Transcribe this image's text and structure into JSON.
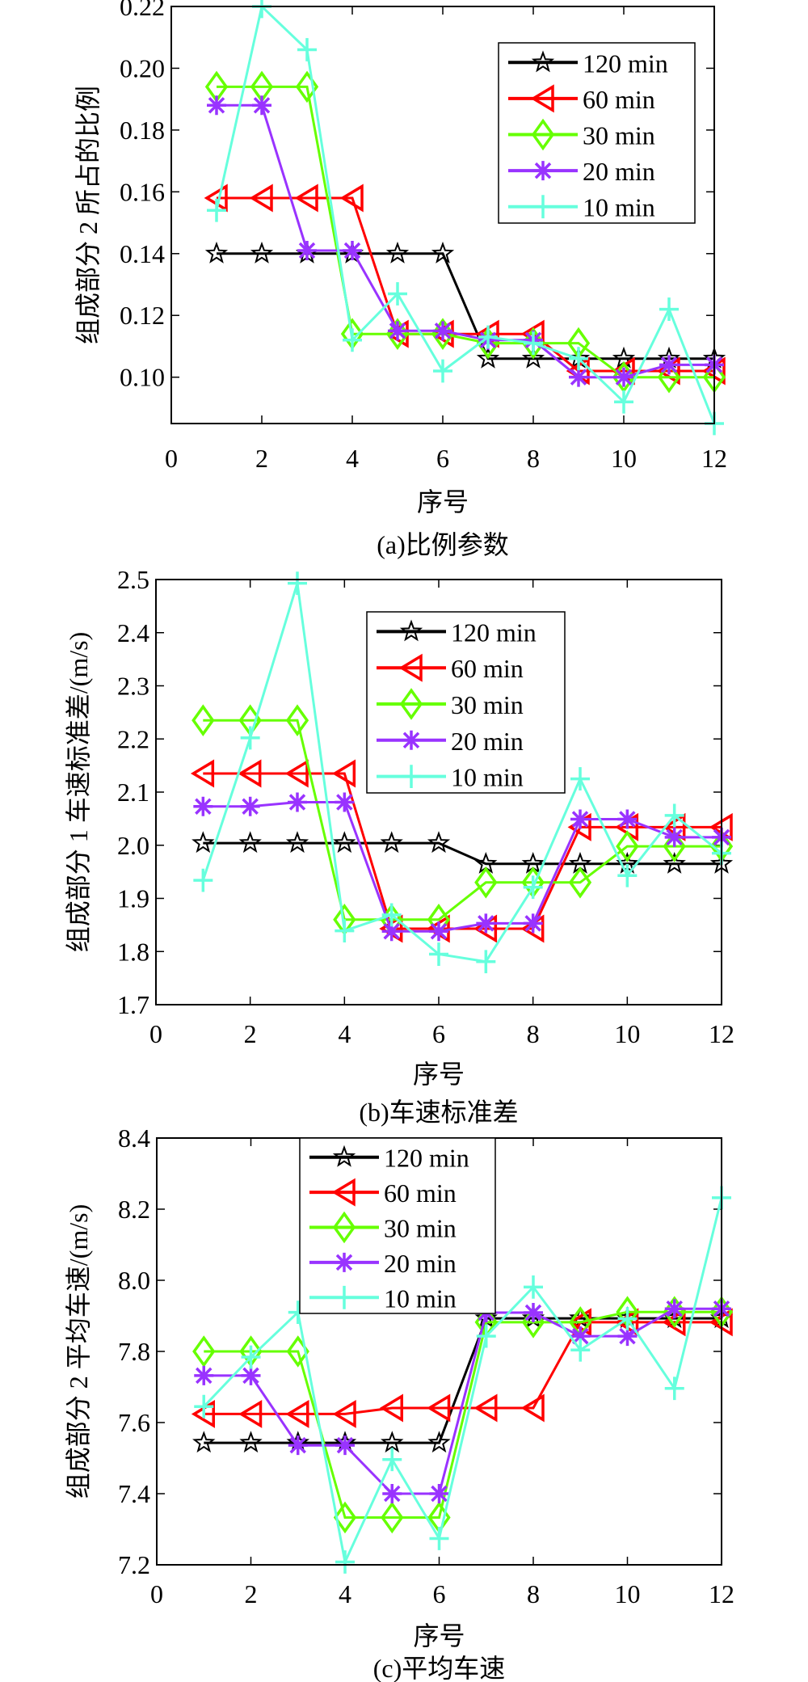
{
  "chart_data": [
    {
      "type": "line",
      "caption": "(a)比例参数",
      "xlabel": "序号",
      "ylabel": "组成部分 2 所占的比例",
      "x": [
        1,
        2,
        3,
        4,
        5,
        6,
        7,
        8,
        9,
        10,
        11,
        12
      ],
      "xlim": [
        0,
        12
      ],
      "ylim": [
        0.085,
        0.22
      ],
      "xticks": [
        "0",
        "2",
        "4",
        "6",
        "8",
        "10",
        "12"
      ],
      "yticks": [
        "0.10",
        "0.12",
        "0.14",
        "0.16",
        "0.18",
        "0.20",
        "0.22"
      ],
      "legend_position": "top-right",
      "grid": false,
      "series": [
        {
          "name": "120 min",
          "color": "#000000",
          "marker": "star",
          "values": [
            0.14,
            0.14,
            0.14,
            0.14,
            0.14,
            0.14,
            0.106,
            0.106,
            0.106,
            0.106,
            0.106,
            0.106
          ]
        },
        {
          "name": "60 min",
          "color": "#ff0000",
          "marker": "triangle-left",
          "values": [
            0.158,
            0.158,
            0.158,
            0.158,
            0.114,
            0.114,
            0.114,
            0.114,
            0.102,
            0.102,
            0.102,
            0.102
          ]
        },
        {
          "name": "30 min",
          "color": "#66ff00",
          "marker": "diamond",
          "values": [
            0.194,
            0.194,
            0.194,
            0.114,
            0.114,
            0.114,
            0.111,
            0.111,
            0.111,
            0.1,
            0.1,
            0.1
          ]
        },
        {
          "name": "20 min",
          "color": "#9933ff",
          "marker": "asterisk",
          "values": [
            0.188,
            0.188,
            0.141,
            0.141,
            0.115,
            0.115,
            0.112,
            0.112,
            0.1,
            0.1,
            0.104,
            0.104
          ]
        },
        {
          "name": "10 min",
          "color": "#66ffdd",
          "marker": "plus",
          "values": [
            0.154,
            0.22,
            0.206,
            0.112,
            0.127,
            0.102,
            0.113,
            0.111,
            0.106,
            0.092,
            0.122,
            0.085
          ]
        }
      ]
    },
    {
      "type": "line",
      "caption": "(b)车速标准差",
      "xlabel": "序号",
      "ylabel": "组成部分 1 车速标准差/(m/s)",
      "x": [
        1,
        2,
        3,
        4,
        5,
        6,
        7,
        8,
        9,
        10,
        11,
        12
      ],
      "xlim": [
        0,
        12
      ],
      "ylim": [
        1.7,
        2.5
      ],
      "xticks": [
        "0",
        "2",
        "4",
        "6",
        "8",
        "10",
        "12"
      ],
      "yticks": [
        "1.7",
        "1.8",
        "1.9",
        "2.0",
        "2.1",
        "2.2",
        "2.3",
        "2.4",
        "2.5"
      ],
      "legend_position": "top-center",
      "grid": false,
      "series": [
        {
          "name": "120 min",
          "color": "#000000",
          "marker": "star",
          "values": [
            2.004,
            2.004,
            2.004,
            2.004,
            2.004,
            2.004,
            1.965,
            1.965,
            1.965,
            1.965,
            1.965,
            1.965
          ]
        },
        {
          "name": "60 min",
          "color": "#ff0000",
          "marker": "triangle-left",
          "values": [
            2.135,
            2.135,
            2.135,
            2.135,
            1.843,
            1.843,
            1.843,
            1.843,
            2.034,
            2.034,
            2.034,
            2.034
          ]
        },
        {
          "name": "30 min",
          "color": "#66ff00",
          "marker": "diamond",
          "values": [
            2.235,
            2.235,
            2.235,
            1.86,
            1.86,
            1.86,
            1.93,
            1.93,
            1.93,
            1.998,
            1.998,
            1.998
          ]
        },
        {
          "name": "20 min",
          "color": "#9933ff",
          "marker": "asterisk",
          "values": [
            2.073,
            2.073,
            2.081,
            2.081,
            1.838,
            1.838,
            1.853,
            1.853,
            2.049,
            2.049,
            2.015,
            2.015
          ]
        },
        {
          "name": "10 min",
          "color": "#66ffdd",
          "marker": "plus",
          "values": [
            1.934,
            2.202,
            2.493,
            1.839,
            1.869,
            1.795,
            1.781,
            1.921,
            2.125,
            1.943,
            2.056,
            1.985
          ]
        }
      ]
    },
    {
      "type": "line",
      "caption": "(c)平均车速",
      "xlabel": "序号",
      "ylabel": "组成部分 2 平均车速/(m/s)",
      "x": [
        1,
        2,
        3,
        4,
        5,
        6,
        7,
        8,
        9,
        10,
        11,
        12
      ],
      "xlim": [
        0,
        12
      ],
      "ylim": [
        7.2,
        8.4
      ],
      "xticks": [
        "0",
        "2",
        "4",
        "6",
        "8",
        "10",
        "12"
      ],
      "yticks": [
        "7.2",
        "7.4",
        "7.6",
        "7.8",
        "8.0",
        "8.2",
        "8.4"
      ],
      "legend_position": "top-left",
      "grid": false,
      "series": [
        {
          "name": "120 min",
          "color": "#000000",
          "marker": "star",
          "values": [
            7.543,
            7.543,
            7.543,
            7.543,
            7.543,
            7.543,
            7.893,
            7.893,
            7.893,
            7.893,
            7.893,
            7.893
          ]
        },
        {
          "name": "60 min",
          "color": "#ff0000",
          "marker": "triangle-left",
          "values": [
            7.624,
            7.624,
            7.624,
            7.624,
            7.641,
            7.641,
            7.641,
            7.641,
            7.882,
            7.882,
            7.882,
            7.882
          ]
        },
        {
          "name": "30 min",
          "color": "#66ff00",
          "marker": "diamond",
          "values": [
            7.8,
            7.8,
            7.8,
            7.333,
            7.333,
            7.333,
            7.882,
            7.882,
            7.882,
            7.911,
            7.911,
            7.911
          ]
        },
        {
          "name": "20 min",
          "color": "#9933ff",
          "marker": "asterisk",
          "values": [
            7.732,
            7.732,
            7.536,
            7.536,
            7.4,
            7.4,
            7.909,
            7.909,
            7.843,
            7.843,
            7.92,
            7.92
          ]
        },
        {
          "name": "10 min",
          "color": "#66ffdd",
          "marker": "plus",
          "values": [
            7.645,
            7.784,
            7.91,
            7.208,
            7.496,
            7.274,
            7.843,
            7.981,
            7.804,
            7.892,
            7.696,
            8.232
          ]
        }
      ]
    }
  ]
}
